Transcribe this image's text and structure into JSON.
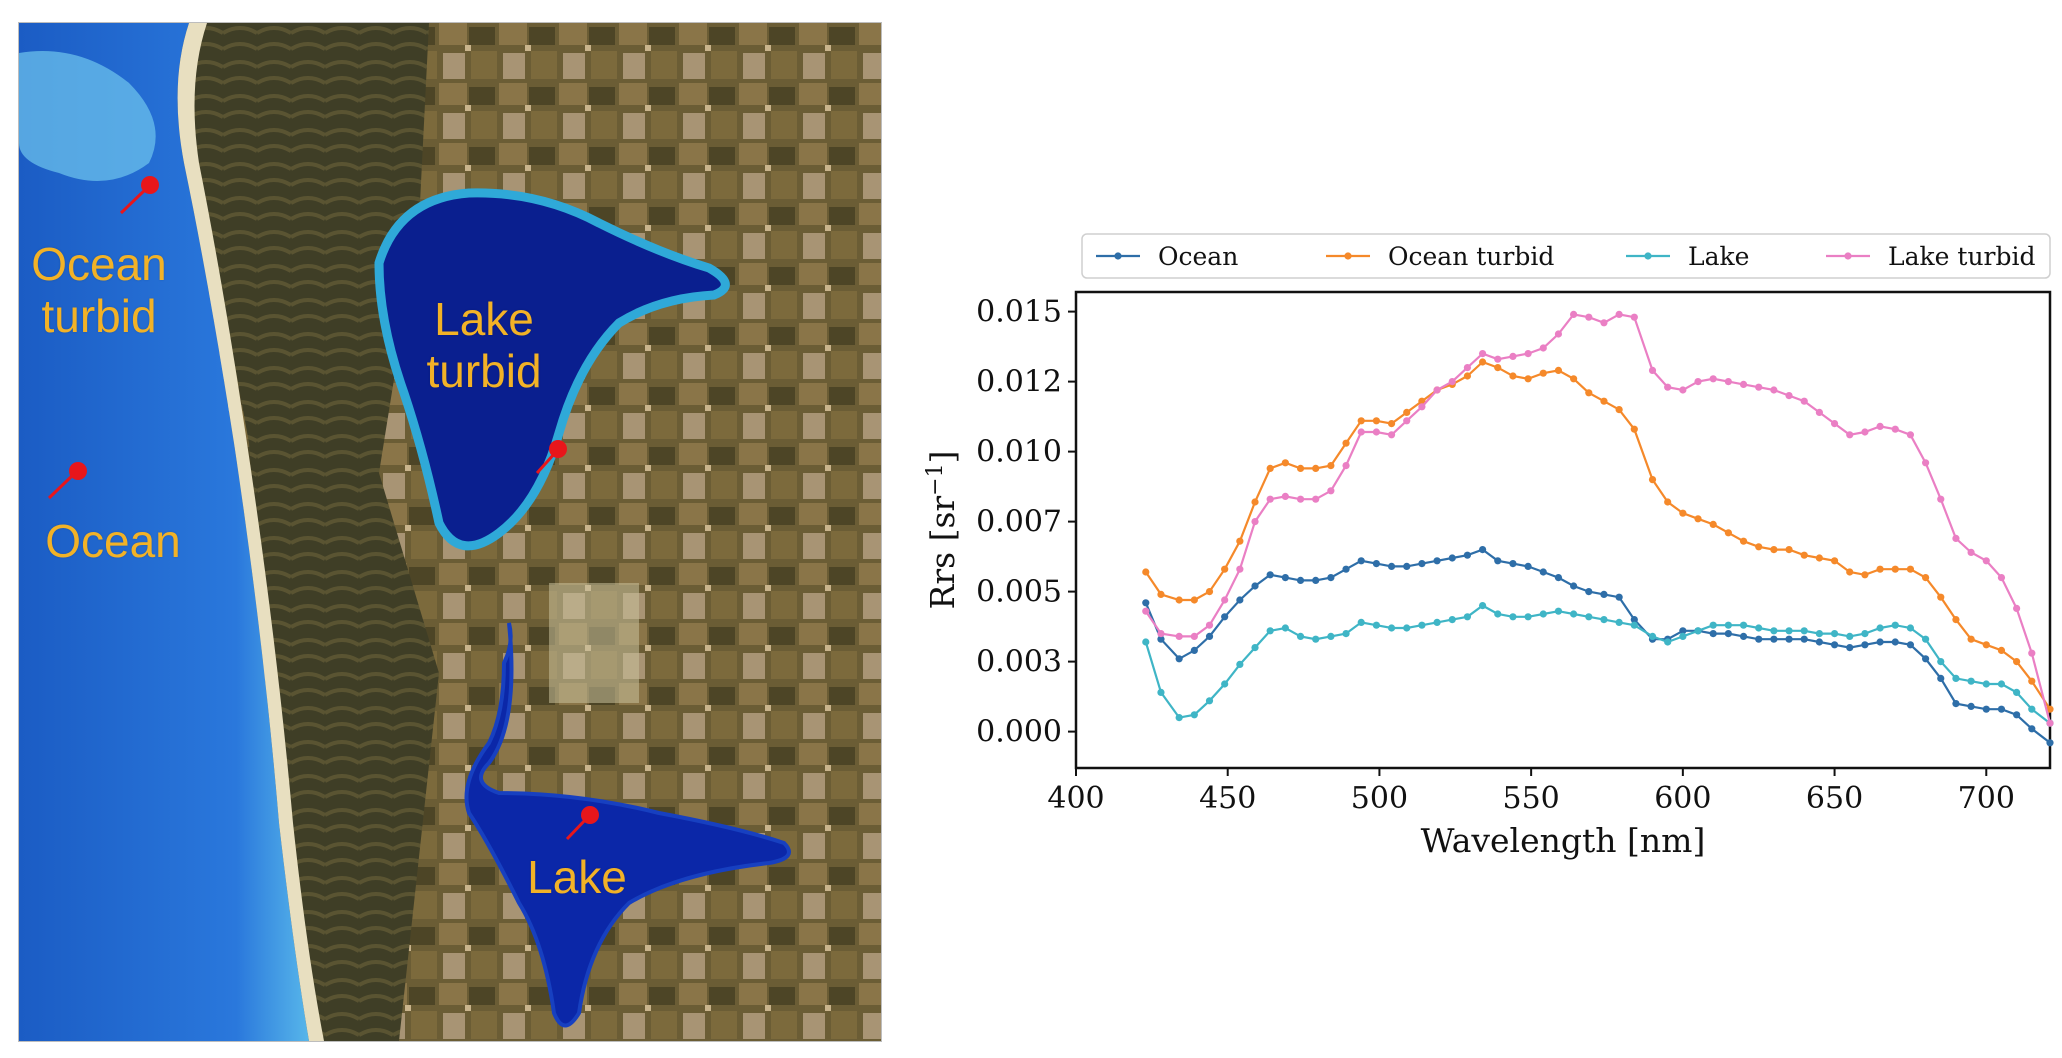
{
  "map": {
    "labels": {
      "ocean_turbid": [
        "Ocean",
        "turbid"
      ],
      "ocean": "Ocean",
      "lake_turbid": [
        "Lake",
        "turbid"
      ],
      "lake": "Lake"
    },
    "colors": {
      "label": "#f2b227",
      "marker": "#e8161b",
      "ocean": "#1f5fc9",
      "lake": "#0a1f8f",
      "land": "#5e5330"
    }
  },
  "chart_data": {
    "type": "line",
    "xlabel": "Wavelength [nm]",
    "ylabel": "Rrs [sr⁻¹]",
    "xlim": [
      400,
      721
    ],
    "ylim": [
      -0.0013,
      0.0157
    ],
    "xticks": [
      400,
      450,
      500,
      550,
      600,
      650,
      700
    ],
    "yticks": [
      0.0,
      0.0025,
      0.005,
      0.0075,
      0.01,
      0.0125,
      0.015
    ],
    "ytick_labels": [
      "0.000",
      "0.003",
      "0.005",
      "0.007",
      "0.010",
      "0.012",
      "0.015"
    ],
    "grid": false,
    "legend_position": "top, outside plot",
    "x": [
      423,
      428,
      434,
      439,
      444,
      449,
      454,
      459,
      464,
      469,
      474,
      479,
      484,
      489,
      494,
      499,
      504,
      509,
      514,
      519,
      524,
      529,
      534,
      539,
      544,
      549,
      554,
      559,
      564,
      569,
      574,
      579,
      584,
      590,
      595,
      600,
      605,
      610,
      615,
      620,
      625,
      630,
      635,
      640,
      645,
      650,
      655,
      660,
      665,
      670,
      675,
      680,
      685,
      690,
      695,
      700,
      705,
      710,
      715,
      721
    ],
    "series": [
      {
        "name": "Ocean",
        "color": "#2e6ea8",
        "values": [
          0.0046,
          0.0033,
          0.0026,
          0.0029,
          0.0034,
          0.0041,
          0.0047,
          0.0052,
          0.0056,
          0.0055,
          0.0054,
          0.0054,
          0.0055,
          0.0058,
          0.0061,
          0.006,
          0.0059,
          0.0059,
          0.006,
          0.0061,
          0.0062,
          0.0063,
          0.0065,
          0.0061,
          0.006,
          0.0059,
          0.0057,
          0.0055,
          0.0052,
          0.005,
          0.0049,
          0.0048,
          0.004,
          0.0033,
          0.0033,
          0.0036,
          0.0036,
          0.0035,
          0.0035,
          0.0034,
          0.0033,
          0.0033,
          0.0033,
          0.0033,
          0.0032,
          0.0031,
          0.003,
          0.0031,
          0.0032,
          0.0032,
          0.0031,
          0.0026,
          0.0019,
          0.001,
          0.0009,
          0.0008,
          0.0008,
          0.0006,
          0.0001,
          -0.0004
        ]
      },
      {
        "name": "Ocean turbid",
        "color": "#f5892a",
        "values": [
          0.0057,
          0.0049,
          0.0047,
          0.0047,
          0.005,
          0.0058,
          0.0068,
          0.0082,
          0.0094,
          0.0096,
          0.0094,
          0.0094,
          0.0095,
          0.0103,
          0.0111,
          0.0111,
          0.011,
          0.0114,
          0.0118,
          0.0122,
          0.0124,
          0.0127,
          0.0132,
          0.013,
          0.0127,
          0.0126,
          0.0128,
          0.0129,
          0.0126,
          0.0121,
          0.0118,
          0.0115,
          0.0108,
          0.009,
          0.0082,
          0.0078,
          0.0076,
          0.0074,
          0.0071,
          0.0068,
          0.0066,
          0.0065,
          0.0065,
          0.0063,
          0.0062,
          0.0061,
          0.0057,
          0.0056,
          0.0058,
          0.0058,
          0.0058,
          0.0055,
          0.0048,
          0.004,
          0.0033,
          0.0031,
          0.0029,
          0.0025,
          0.0018,
          0.0008
        ]
      },
      {
        "name": "Lake",
        "color": "#3fb5c6",
        "values": [
          0.0032,
          0.0014,
          0.0005,
          0.0006,
          0.0011,
          0.0017,
          0.0024,
          0.003,
          0.0036,
          0.0037,
          0.0034,
          0.0033,
          0.0034,
          0.0035,
          0.0039,
          0.0038,
          0.0037,
          0.0037,
          0.0038,
          0.0039,
          0.004,
          0.0041,
          0.0045,
          0.0042,
          0.0041,
          0.0041,
          0.0042,
          0.0043,
          0.0042,
          0.0041,
          0.004,
          0.0039,
          0.0038,
          0.0034,
          0.0032,
          0.0034,
          0.0036,
          0.0038,
          0.0038,
          0.0038,
          0.0037,
          0.0036,
          0.0036,
          0.0036,
          0.0035,
          0.0035,
          0.0034,
          0.0035,
          0.0037,
          0.0038,
          0.0037,
          0.0033,
          0.0025,
          0.0019,
          0.0018,
          0.0017,
          0.0017,
          0.0014,
          0.0008,
          0.0003
        ]
      },
      {
        "name": "Lake turbid",
        "color": "#ea7fc4",
        "values": [
          0.0043,
          0.0035,
          0.0034,
          0.0034,
          0.0038,
          0.0047,
          0.0058,
          0.0075,
          0.0083,
          0.0084,
          0.0083,
          0.0083,
          0.0086,
          0.0095,
          0.0107,
          0.0107,
          0.0106,
          0.0111,
          0.0116,
          0.0122,
          0.0125,
          0.013,
          0.0135,
          0.0133,
          0.0134,
          0.0135,
          0.0137,
          0.0142,
          0.0149,
          0.0148,
          0.0146,
          0.0149,
          0.0148,
          0.0129,
          0.0123,
          0.0122,
          0.0125,
          0.0126,
          0.0125,
          0.0124,
          0.0123,
          0.0122,
          0.012,
          0.0118,
          0.0114,
          0.011,
          0.0106,
          0.0107,
          0.0109,
          0.0108,
          0.0106,
          0.0096,
          0.0083,
          0.0069,
          0.0064,
          0.0061,
          0.0055,
          0.0044,
          0.0028,
          0.0003
        ]
      }
    ]
  }
}
